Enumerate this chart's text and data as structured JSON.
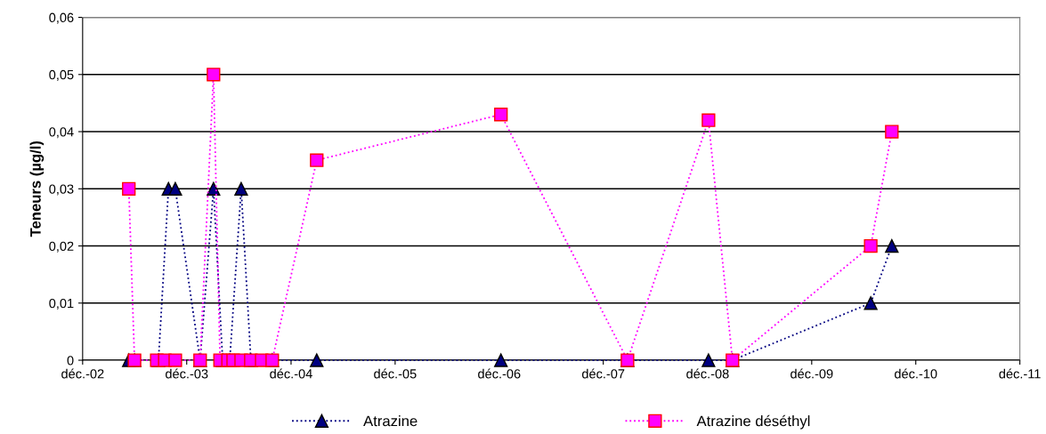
{
  "chart_data": {
    "type": "line",
    "ylabel": "Teneurs (µg/l)",
    "xlim": [
      "2002-12-01",
      "2011-12-01"
    ],
    "xticks": [
      {
        "value": "2002-12-01",
        "label": "déc.-02"
      },
      {
        "value": "2003-12-01",
        "label": "déc.-03"
      },
      {
        "value": "2004-12-01",
        "label": "déc.-04"
      },
      {
        "value": "2005-12-01",
        "label": "déc.-05"
      },
      {
        "value": "2006-12-01",
        "label": "déc.-06"
      },
      {
        "value": "2007-12-01",
        "label": "déc.-07"
      },
      {
        "value": "2008-12-01",
        "label": "déc.-08"
      },
      {
        "value": "2009-12-01",
        "label": "déc.-09"
      },
      {
        "value": "2010-12-01",
        "label": "déc.-10"
      },
      {
        "value": "2011-12-01",
        "label": "déc.-11"
      }
    ],
    "ylim": [
      0,
      0.06
    ],
    "yticks": [
      {
        "value": 0,
        "label": "0"
      },
      {
        "value": 0.01,
        "label": "0,01"
      },
      {
        "value": 0.02,
        "label": "0,02"
      },
      {
        "value": 0.03,
        "label": "0,03"
      },
      {
        "value": 0.04,
        "label": "0,04"
      },
      {
        "value": 0.05,
        "label": "0,05"
      },
      {
        "value": 0.06,
        "label": "0,06"
      }
    ],
    "grid": "y",
    "legend": "bottom",
    "line_style": "dotted",
    "series": [
      {
        "name": "Atrazine",
        "color": "#000080",
        "marker": "triangle",
        "x": [
          "2003-05-12",
          "2003-06-01",
          "2003-08-24",
          "2003-09-28",
          "2003-10-22",
          "2004-01-17",
          "2004-03-04",
          "2004-04-05",
          "2004-04-30",
          "2004-06-09",
          "2004-07-13",
          "2004-09-26",
          "2005-03-01",
          "2006-12-07",
          "2008-02-24",
          "2008-12-04",
          "2009-02-26",
          "2010-06-26",
          "2010-09-08"
        ],
        "values": [
          0,
          0,
          0,
          0.03,
          0.03,
          0,
          0.03,
          0,
          0,
          0.03,
          0,
          0,
          0,
          0,
          0,
          0,
          0,
          0.01,
          0.02
        ]
      },
      {
        "name": "Atrazine déséthyl",
        "color": "#ff00ff",
        "marker": "square",
        "x": [
          "2003-05-12",
          "2003-06-01",
          "2003-08-18",
          "2003-09-15",
          "2003-10-22",
          "2004-01-17",
          "2004-03-04",
          "2004-03-27",
          "2004-04-24",
          "2004-05-12",
          "2004-06-09",
          "2004-07-13",
          "2004-08-20",
          "2004-09-26",
          "2005-03-01",
          "2006-12-07",
          "2008-02-24",
          "2008-12-04",
          "2009-02-26",
          "2010-06-26",
          "2010-09-08"
        ],
        "values": [
          0.03,
          0,
          0,
          0,
          0,
          0,
          0.05,
          0,
          0,
          0,
          0,
          0,
          0,
          0,
          0.035,
          0.043,
          0,
          0.042,
          0,
          0.02,
          0.04
        ]
      }
    ]
  }
}
